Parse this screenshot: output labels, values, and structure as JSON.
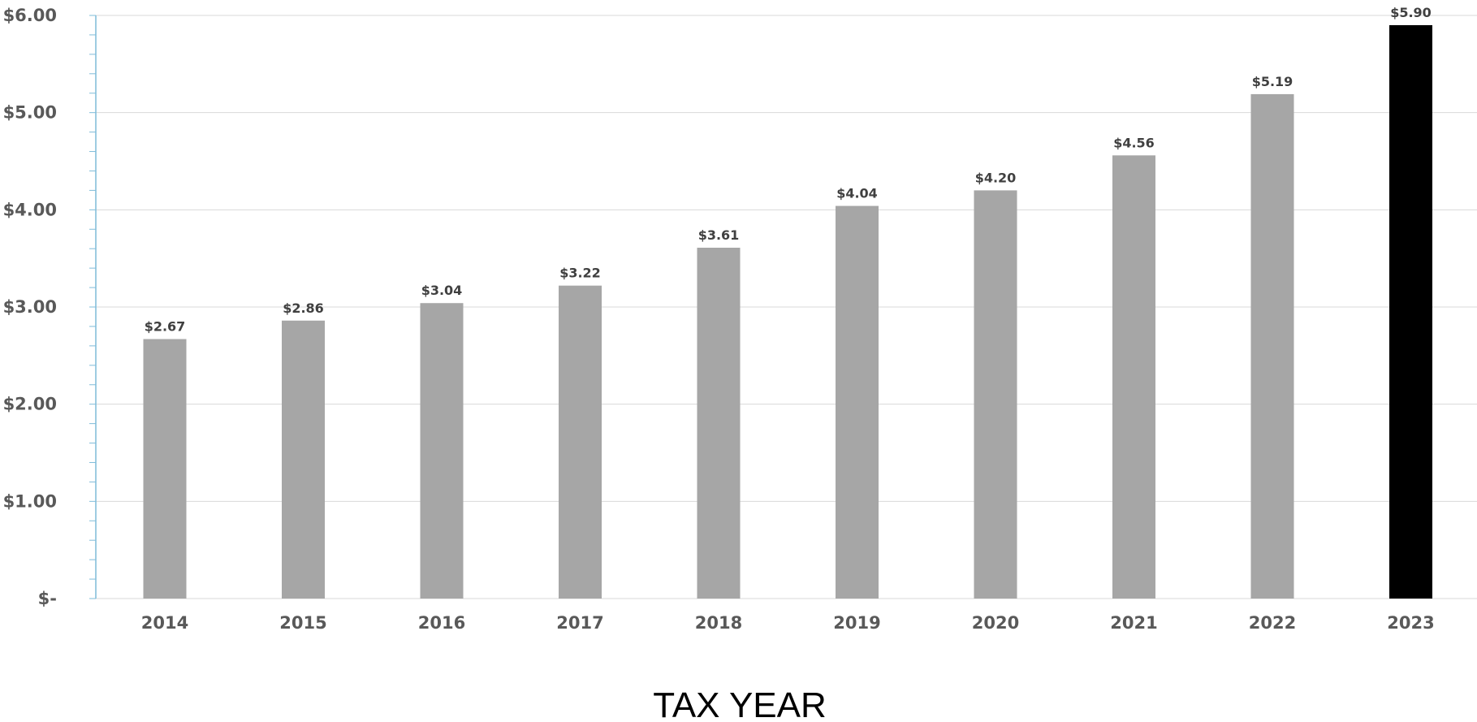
{
  "chart_data": {
    "type": "bar",
    "title": "",
    "xlabel": "TAX YEAR",
    "ylabel": "",
    "categories": [
      "2014",
      "2015",
      "2016",
      "2017",
      "2018",
      "2019",
      "2020",
      "2021",
      "2022",
      "2023"
    ],
    "values": [
      2.67,
      2.86,
      3.04,
      3.22,
      3.61,
      4.04,
      4.2,
      4.56,
      5.19,
      5.9
    ],
    "data_labels": [
      "$2.67",
      "$2.86",
      "$3.04",
      "$3.22",
      "$3.61",
      "$4.04",
      "$4.20",
      "$4.56",
      "$5.19",
      "$5.90"
    ],
    "ylim": [
      0,
      6
    ],
    "yticks": [
      0,
      1,
      2,
      3,
      4,
      5,
      6
    ],
    "ytick_labels": [
      "$-",
      "$1.00",
      "$2.00",
      "$3.00",
      "$4.00",
      "$5.00",
      "$6.00"
    ],
    "grid": true,
    "legend": "none",
    "highlight_index": 9,
    "colors": {
      "bar": "#a6a6a6",
      "highlight_bar": "#000000",
      "axis": "#7fbcd9",
      "grid": "#d9d9d9",
      "tick_text": "#595959",
      "data_label_text": "#404040",
      "title_text": "#000000"
    }
  }
}
